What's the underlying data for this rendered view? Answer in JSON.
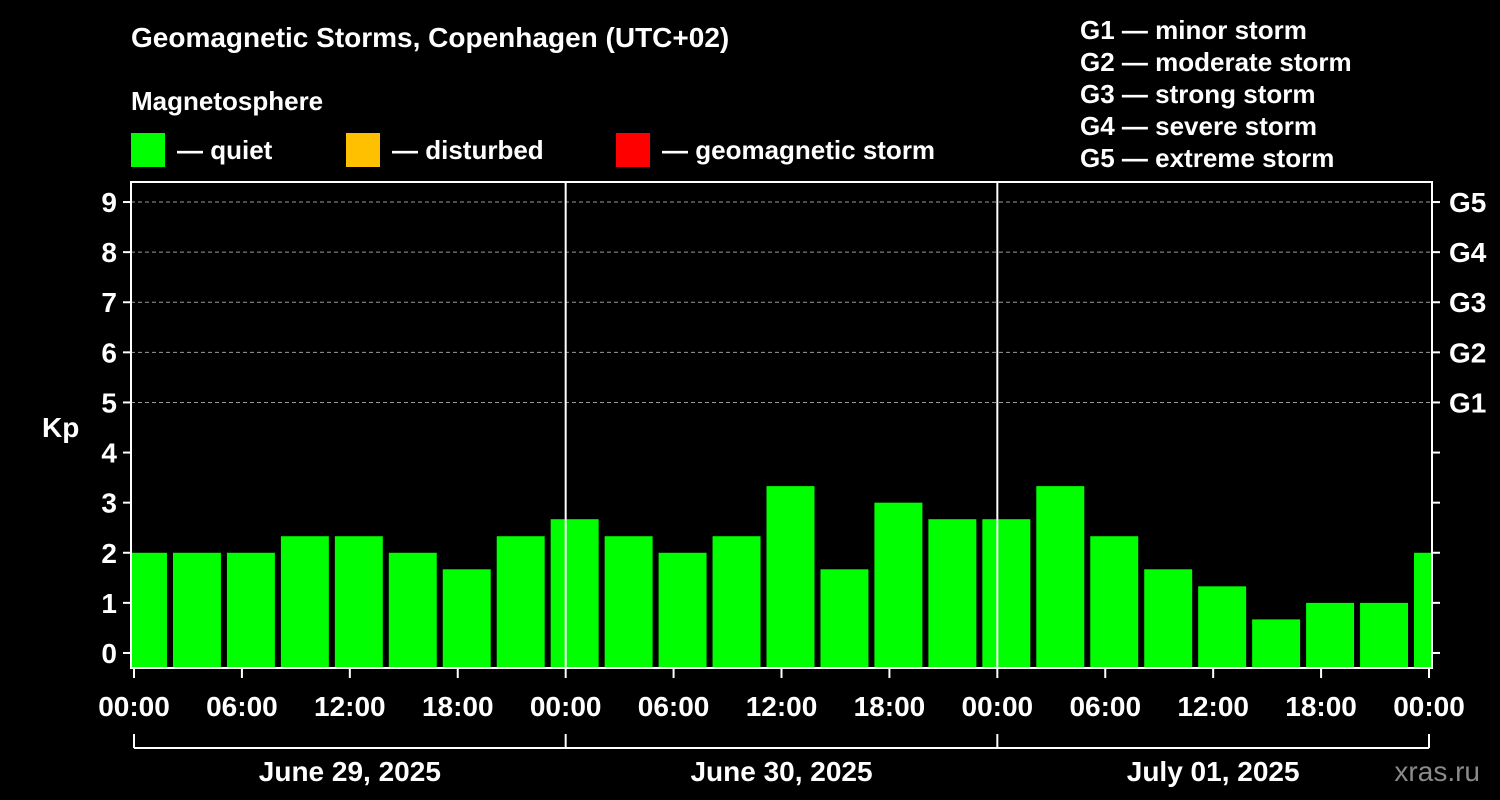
{
  "title": "Geomagnetic Storms, Copenhagen (UTC+02)",
  "magnetosphere_label": "Magnetosphere",
  "legend": [
    {
      "label": "— quiet",
      "color": "#00ff00"
    },
    {
      "label": "— disturbed",
      "color": "#ffc000"
    },
    {
      "label": "— geomagnetic storm",
      "color": "#ff0000"
    }
  ],
  "storm_scale": [
    "G1 — minor storm",
    "G2 — moderate storm",
    "G3 — strong storm",
    "G4 — severe storm",
    "G5 — extreme storm"
  ],
  "watermark": "xras.ru",
  "chart_data": {
    "type": "bar",
    "ylabel": "Kp",
    "ylim": [
      -0.3,
      9.4
    ],
    "yticks": [
      0,
      1,
      2,
      3,
      4,
      5,
      6,
      7,
      8,
      9
    ],
    "g_levels": [
      {
        "kp": 5,
        "label": "G1"
      },
      {
        "kp": 6,
        "label": "G2"
      },
      {
        "kp": 7,
        "label": "G3"
      },
      {
        "kp": 8,
        "label": "G4"
      },
      {
        "kp": 9,
        "label": "G5"
      }
    ],
    "x_range_hours": [
      0,
      72
    ],
    "xticks_hours": [
      0,
      6,
      12,
      18,
      24,
      30,
      36,
      42,
      48,
      54,
      60,
      66,
      72
    ],
    "xtick_labels": [
      "00:00",
      "06:00",
      "12:00",
      "18:00",
      "00:00",
      "06:00",
      "12:00",
      "18:00",
      "00:00",
      "06:00",
      "12:00",
      "18:00",
      "00:00"
    ],
    "days": [
      {
        "label": "June 29, 2025",
        "start_hour": 0
      },
      {
        "label": "June 30, 2025",
        "start_hour": 24
      },
      {
        "label": "July 01, 2025",
        "start_hour": 48
      }
    ],
    "bar_width_hours": 3,
    "bars": [
      {
        "start_hour": -1,
        "kp": 2.0
      },
      {
        "start_hour": 2,
        "kp": 2.0
      },
      {
        "start_hour": 5,
        "kp": 2.0
      },
      {
        "start_hour": 8,
        "kp": 2.33
      },
      {
        "start_hour": 11,
        "kp": 2.33
      },
      {
        "start_hour": 14,
        "kp": 2.0
      },
      {
        "start_hour": 17,
        "kp": 1.67
      },
      {
        "start_hour": 20,
        "kp": 2.33
      },
      {
        "start_hour": 23,
        "kp": 2.67
      },
      {
        "start_hour": 26,
        "kp": 2.33
      },
      {
        "start_hour": 29,
        "kp": 2.0
      },
      {
        "start_hour": 32,
        "kp": 2.33
      },
      {
        "start_hour": 35,
        "kp": 3.33
      },
      {
        "start_hour": 38,
        "kp": 1.67
      },
      {
        "start_hour": 41,
        "kp": 3.0
      },
      {
        "start_hour": 44,
        "kp": 2.67
      },
      {
        "start_hour": 47,
        "kp": 2.67
      },
      {
        "start_hour": 50,
        "kp": 3.33
      },
      {
        "start_hour": 53,
        "kp": 2.33
      },
      {
        "start_hour": 56,
        "kp": 1.67
      },
      {
        "start_hour": 59,
        "kp": 1.33
      },
      {
        "start_hour": 62,
        "kp": 0.67
      },
      {
        "start_hour": 65,
        "kp": 1.0
      },
      {
        "start_hour": 68,
        "kp": 1.0
      },
      {
        "start_hour": 71,
        "kp": 2.0
      }
    ],
    "thresholds": {
      "disturbed": 4,
      "storm": 5
    }
  }
}
